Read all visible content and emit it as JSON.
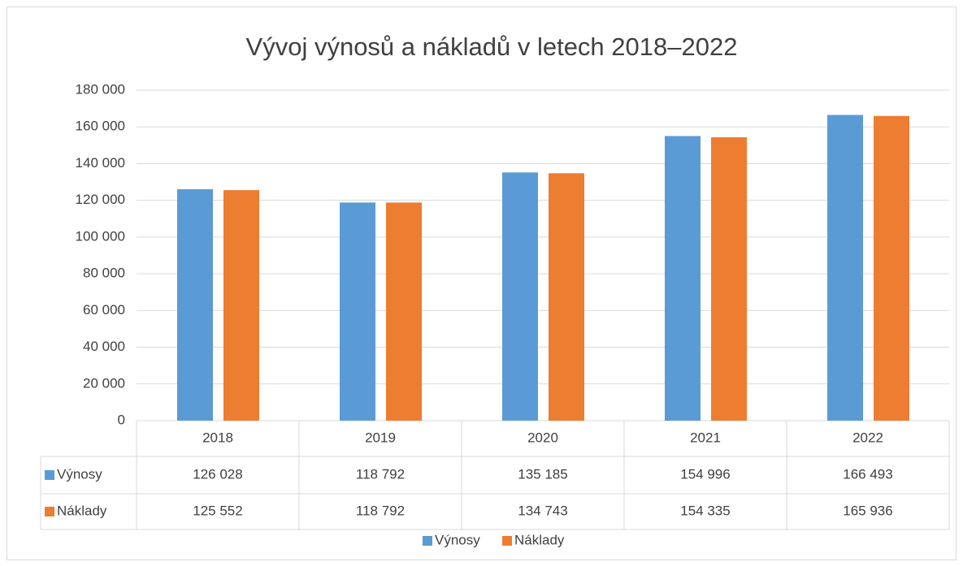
{
  "chart_data": {
    "type": "bar",
    "title": "Vývoj výnosů a nákladů v letech 2018–2022",
    "categories": [
      "2018",
      "2019",
      "2020",
      "2021",
      "2022"
    ],
    "series": [
      {
        "name": "Výnosy",
        "color": "#5b9bd5",
        "values": [
          126028,
          118792,
          135185,
          154996,
          166493
        ],
        "value_labels": [
          "126 028",
          "118 792",
          "135 185",
          "154 996",
          "166 493"
        ]
      },
      {
        "name": "Náklady",
        "color": "#ed7d31",
        "values": [
          125552,
          118792,
          134743,
          154335,
          165936
        ],
        "value_labels": [
          "125 552",
          "118 792",
          "134 743",
          "154 335",
          "165 936"
        ]
      }
    ],
    "ylim": [
      0,
      180000
    ],
    "yticks": [
      0,
      {
        "value": 20000,
        "label": "20 000"
      },
      {
        "value": 40000,
        "label": "40 000"
      },
      {
        "value": 60000,
        "label": "60 000"
      },
      {
        "value": 80000,
        "label": "80 000"
      },
      {
        "value": 100000,
        "label": "100 000"
      },
      {
        "value": 120000,
        "label": "120 000"
      },
      {
        "value": 140000,
        "label": "140 000"
      },
      {
        "value": 160000,
        "label": "160 000"
      },
      {
        "value": 180000,
        "label": "180 000"
      }
    ],
    "grid": true,
    "legend": "bottom"
  }
}
